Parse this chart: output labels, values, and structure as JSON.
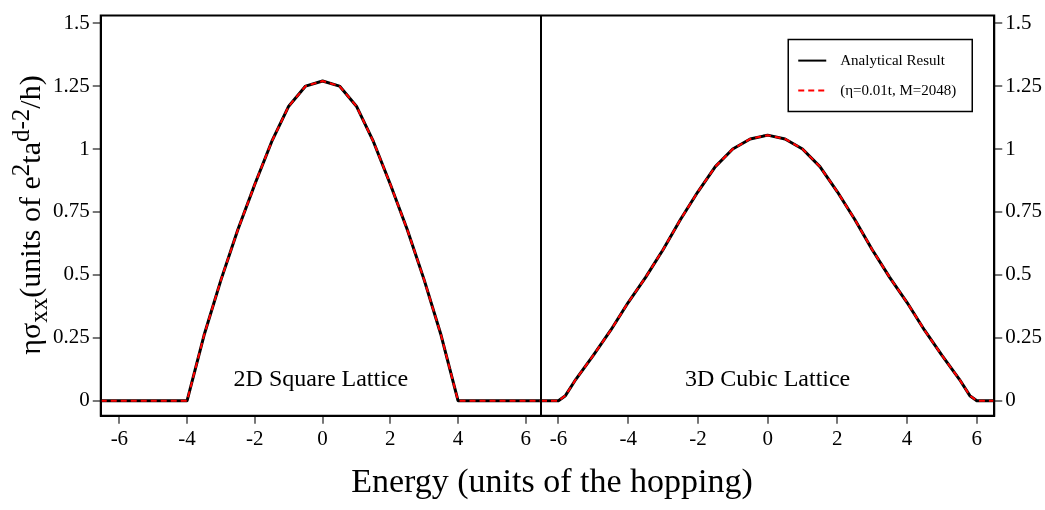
{
  "chart_data": [
    {
      "type": "line",
      "ylabel": "ησ$_{xx}$(units of e$^{2}$ta$^{d-2}$/h)",
      "xlabel": "Energy (units of the hopping)",
      "annotations": [
        "2D Square Lattice"
      ],
      "xlim": [
        -6.55,
        6.45
      ],
      "ylim": [
        -0.06,
        1.53
      ],
      "xticks": [
        -6,
        -4,
        -2,
        0,
        2,
        4,
        6
      ],
      "yticks": [
        0,
        0.25,
        0.5,
        0.75,
        1,
        1.25,
        1.5
      ],
      "grid": false,
      "legend": false,
      "marker": "none",
      "series": [
        {
          "color": "#000000",
          "line_style": "solid",
          "x": [
            -6.55,
            -4,
            -3.5,
            -3,
            -2.5,
            -2,
            -1.5,
            -1,
            -0.5,
            0,
            0.5,
            1,
            1.5,
            2,
            2.5,
            3,
            3.5,
            4,
            6.45
          ],
          "values": [
            0,
            0,
            0.26,
            0.48,
            0.68,
            0.86,
            1.03,
            1.17,
            1.25,
            1.27,
            1.25,
            1.17,
            1.03,
            0.86,
            0.68,
            0.48,
            0.26,
            0,
            0
          ]
        },
        {
          "color": "#ff0000",
          "line_style": "dashed",
          "x": [
            -6.55,
            -4,
            -3.5,
            -3,
            -2.5,
            -2,
            -1.5,
            -1,
            -0.5,
            0,
            0.5,
            1,
            1.5,
            2,
            2.5,
            3,
            3.5,
            4,
            6.45
          ],
          "values": [
            0,
            0,
            0.26,
            0.48,
            0.68,
            0.86,
            1.03,
            1.17,
            1.25,
            1.27,
            1.25,
            1.17,
            1.03,
            0.86,
            0.68,
            0.48,
            0.26,
            0,
            0
          ]
        }
      ]
    },
    {
      "type": "line",
      "annotations": [
        "3D Cubic Lattice"
      ],
      "xlim": [
        -6.5,
        6.5
      ],
      "ylim": [
        -0.06,
        1.53
      ],
      "xticks": [
        -6,
        -4,
        -2,
        0,
        2,
        4,
        6
      ],
      "yticks": [
        0,
        0.25,
        0.5,
        0.75,
        1,
        1.25,
        1.5
      ],
      "grid": false,
      "legend": "top right",
      "marker": "none",
      "series": [
        {
          "name": "Analytical Result",
          "color": "#000000",
          "line_style": "solid",
          "x": [
            -6.5,
            -6,
            -5.8,
            -5.5,
            -5,
            -4.5,
            -4,
            -3.5,
            -3,
            -2.5,
            -2,
            -1.5,
            -1,
            -0.5,
            0,
            0.5,
            1,
            1.5,
            2,
            2.5,
            3,
            3.5,
            4,
            4.5,
            5,
            5.5,
            5.8,
            6,
            6.5
          ],
          "values": [
            0,
            0,
            0.02,
            0.085,
            0.18,
            0.28,
            0.39,
            0.49,
            0.6,
            0.72,
            0.83,
            0.93,
            1.0,
            1.04,
            1.055,
            1.04,
            1.0,
            0.93,
            0.83,
            0.72,
            0.6,
            0.49,
            0.39,
            0.28,
            0.18,
            0.085,
            0.02,
            0,
            0
          ]
        },
        {
          "name": "(η=0.01t, M=2048)",
          "color": "#ff0000",
          "line_style": "dashed",
          "x": [
            -6.5,
            -6,
            -5.8,
            -5.5,
            -5,
            -4.5,
            -4,
            -3.5,
            -3,
            -2.5,
            -2,
            -1.5,
            -1,
            -0.5,
            0,
            0.5,
            1,
            1.5,
            2,
            2.5,
            3,
            3.5,
            4,
            4.5,
            5,
            5.5,
            5.8,
            6,
            6.5
          ],
          "values": [
            0,
            0,
            0.02,
            0.085,
            0.18,
            0.28,
            0.39,
            0.49,
            0.6,
            0.72,
            0.83,
            0.93,
            1.0,
            1.04,
            1.055,
            1.04,
            1.0,
            0.93,
            0.83,
            0.72,
            0.6,
            0.49,
            0.39,
            0.28,
            0.18,
            0.085,
            0.02,
            0,
            0
          ]
        }
      ]
    }
  ]
}
